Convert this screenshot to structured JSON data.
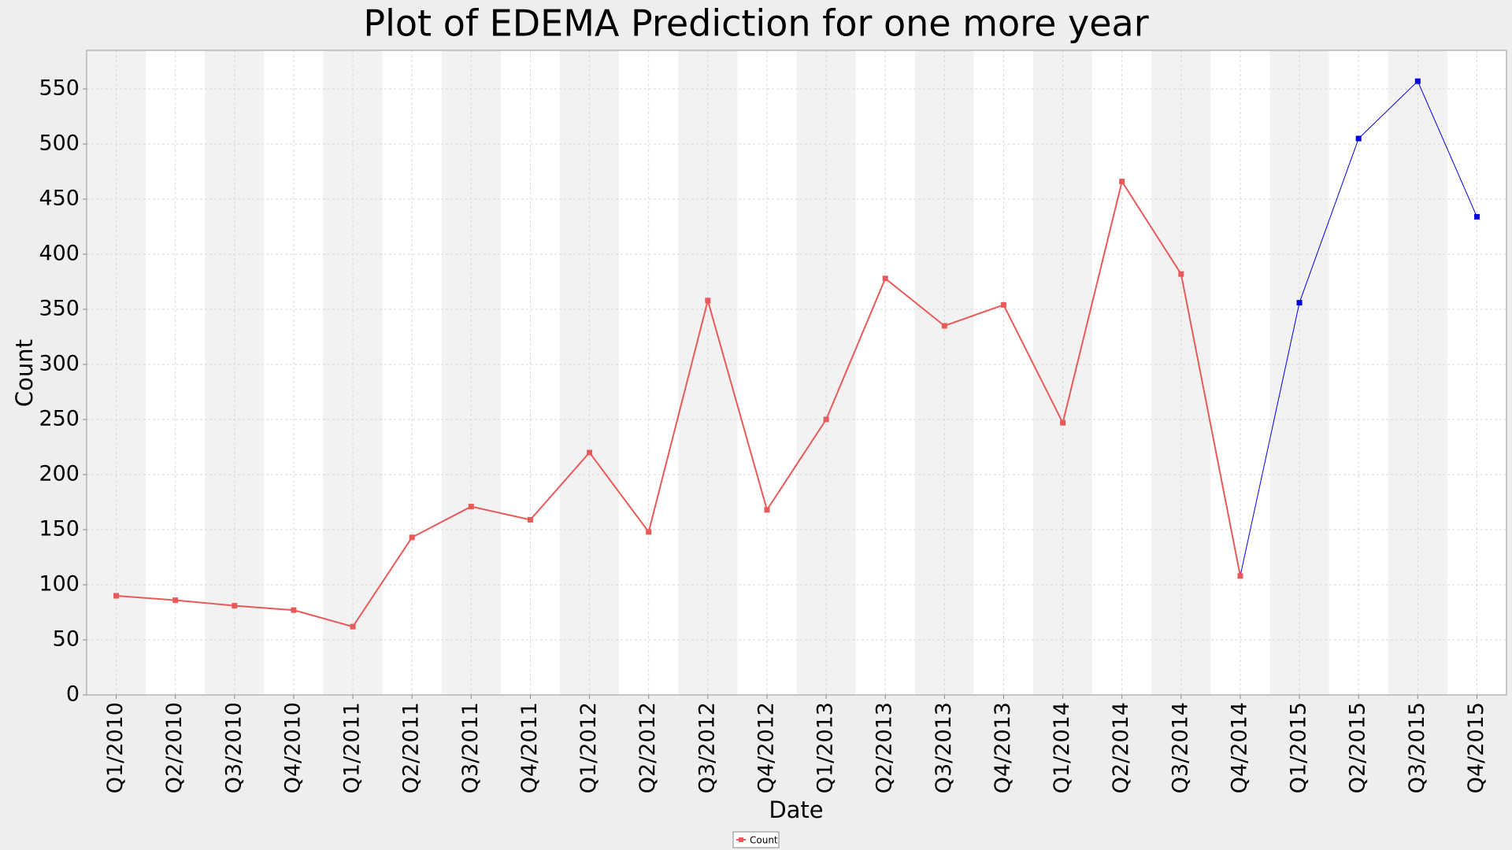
{
  "chart_data": {
    "type": "line",
    "title": "Plot of EDEMA Prediction for one more year",
    "x_label": "Date",
    "y_label": "Count",
    "categories": [
      "Q1/2010",
      "Q2/2010",
      "Q3/2010",
      "Q4/2010",
      "Q1/2011",
      "Q2/2011",
      "Q3/2011",
      "Q4/2011",
      "Q1/2012",
      "Q2/2012",
      "Q3/2012",
      "Q4/2012",
      "Q1/2013",
      "Q2/2013",
      "Q3/2013",
      "Q4/2013",
      "Q1/2014",
      "Q2/2014",
      "Q3/2014",
      "Q4/2014",
      "Q1/2015",
      "Q2/2015",
      "Q3/2015",
      "Q4/2015"
    ],
    "series": [
      {
        "name": "Count",
        "color": "#e85a5a",
        "values": [
          90,
          86,
          81,
          77,
          62,
          143,
          171,
          159,
          220,
          148,
          358,
          168,
          250,
          378,
          335,
          354,
          247,
          466,
          382,
          108,
          null,
          null,
          null,
          null
        ]
      },
      {
        "color": "#0000dd",
        "values": [
          null,
          null,
          null,
          null,
          null,
          null,
          null,
          null,
          null,
          null,
          null,
          null,
          null,
          null,
          null,
          null,
          null,
          null,
          null,
          108,
          356,
          505,
          557,
          434
        ]
      }
    ],
    "ylim": [
      0,
      585
    ],
    "yticks": [
      0,
      50,
      100,
      150,
      200,
      250,
      300,
      350,
      400,
      450,
      500,
      550
    ],
    "grid": true,
    "legend": "bottom"
  }
}
